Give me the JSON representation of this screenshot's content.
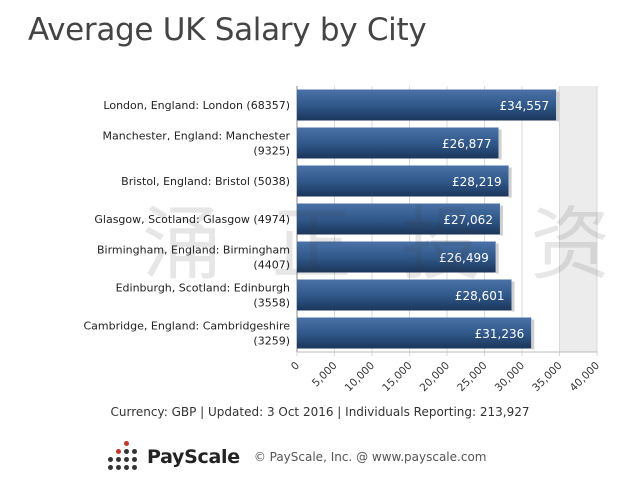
{
  "chart_data": {
    "type": "bar",
    "orientation": "horizontal",
    "title": "Average UK Salary by City",
    "categories": [
      "London, England: London (68357)",
      "Manchester, England: Manchester (9325)",
      "Bristol, England: Bristol (5038)",
      "Glasgow, Scotland: Glasgow (4974)",
      "Birmingham, England: Birmingham (4407)",
      "Edinburgh, Scotland: Edinburgh (3558)",
      "Cambridge, England: Cambridgeshire (3259)"
    ],
    "category_lines": [
      [
        "London, England: London (68357)"
      ],
      [
        "Manchester, England: Manchester",
        "(9325)"
      ],
      [
        "Bristol, England: Bristol (5038)"
      ],
      [
        "Glasgow, Scotland: Glasgow (4974)"
      ],
      [
        "Birmingham, England: Birmingham",
        "(4407)"
      ],
      [
        "Edinburgh, Scotland: Edinburgh",
        "(3558)"
      ],
      [
        "Cambridge, England: Cambridgeshire",
        "(3259)"
      ]
    ],
    "values": [
      34557,
      26877,
      28219,
      27062,
      26499,
      28601,
      31236
    ],
    "value_labels": [
      "£34,557",
      "£26,877",
      "£28,219",
      "£27,062",
      "£26,499",
      "£28,601",
      "£31,236"
    ],
    "xlim": [
      0,
      40000
    ],
    "xticks": [
      0,
      5000,
      10000,
      15000,
      20000,
      25000,
      30000,
      35000,
      40000
    ],
    "xtick_labels": [
      "0",
      "5,000",
      "10,000",
      "15,000",
      "20,000",
      "25,000",
      "30,000",
      "35,000",
      "40,000"
    ],
    "xlabel": "",
    "ylabel": "",
    "grid": true,
    "bar_color": "#2f5687",
    "shaded_band_x": [
      35000,
      40000
    ]
  },
  "footer": {
    "info": "Currency: GBP  |  Updated: 3 Oct 2016  |  Individuals Reporting: 213,927",
    "brand_name": "PayScale",
    "copyright": "© PayScale, Inc. @ www.payscale.com",
    "watermark": "涌 正 投 资"
  },
  "colors": {
    "title": "#444444",
    "bar_dark": "#1b3559",
    "bar_light": "#4a72a8",
    "plot_background": "#ffffff",
    "shaded_band": "#ececec",
    "logo_dark": "#333333",
    "logo_red": "#c0392b"
  }
}
